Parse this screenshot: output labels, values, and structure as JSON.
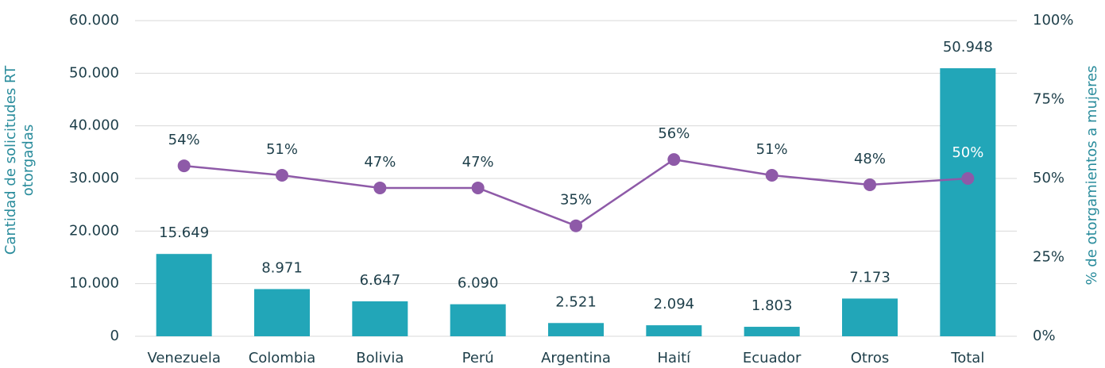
{
  "chart_data": {
    "type": "bar",
    "ylabel": "Cantidad de solicitudes RT otorgadas",
    "y2label": "% de otorgamientos a mujeres",
    "categories": [
      "Venezuela",
      "Colombia",
      "Bolivia",
      "Perú",
      "Argentina",
      "Haití",
      "Ecuador",
      "Otros",
      "Total"
    ],
    "series": [
      {
        "type": "bar",
        "color": "#22a6b8",
        "values": [
          15649,
          8971,
          6647,
          6090,
          2521,
          2094,
          1803,
          7173,
          50948
        ],
        "value_labels": [
          "15.649",
          "8.971",
          "6.647",
          "6.090",
          "2.521",
          "2.094",
          "1.803",
          "7.173",
          "50.948"
        ]
      },
      {
        "type": "line",
        "axis": "y2",
        "color": "#8e5aa8",
        "values": [
          54,
          51,
          47,
          47,
          35,
          56,
          51,
          48,
          50
        ],
        "value_labels": [
          "54%",
          "51%",
          "47%",
          "47%",
          "35%",
          "56%",
          "51%",
          "48%",
          "50%"
        ]
      }
    ],
    "ylim": [
      0,
      60000
    ],
    "yticks": [
      0,
      {
        "value": 10000,
        "label": "10.000"
      },
      {
        "value": 20000,
        "label": "20.000"
      },
      {
        "value": 30000,
        "label": "30.000"
      },
      {
        "value": 40000,
        "label": "40.000"
      },
      {
        "value": 50000,
        "label": "50.000"
      },
      {
        "value": 60000,
        "label": "60.000"
      }
    ],
    "y2lim": [
      0,
      100
    ],
    "y2ticks": [
      {
        "value": 0,
        "label": "0%"
      },
      {
        "value": 25,
        "label": "25%"
      },
      {
        "value": 50,
        "label": "50%"
      },
      {
        "value": 75,
        "label": "75%"
      },
      {
        "value": 100,
        "label": "100%"
      }
    ],
    "grid": true
  }
}
